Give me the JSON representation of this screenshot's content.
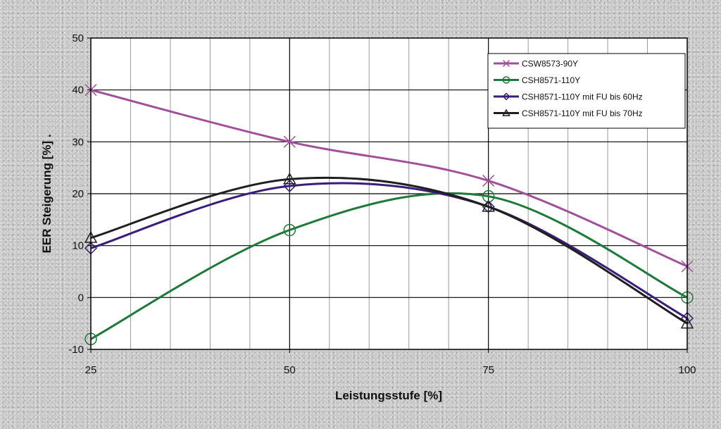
{
  "chart_data": {
    "type": "line",
    "xlabel": "Leistungsstufe [%]",
    "ylabel": "EER Steigerung [%] .",
    "x": [
      25,
      50,
      75,
      100
    ],
    "xlim": [
      25,
      100
    ],
    "ylim": [
      -10,
      50
    ],
    "x_ticks": [
      25,
      50,
      75,
      100
    ],
    "y_ticks": [
      -10,
      0,
      10,
      20,
      30,
      40,
      50
    ],
    "grid": true,
    "legend_position": "top-right",
    "series": [
      {
        "name": "CSW8573-90Y",
        "values": [
          40,
          30,
          22.5,
          6
        ],
        "color": "#a0509a",
        "marker": "x"
      },
      {
        "name": "CSH8571-110Y",
        "values": [
          -8,
          13,
          19.5,
          0
        ],
        "color": "#1e7a3a",
        "marker": "circle"
      },
      {
        "name": "CSH8571-110Y mit FU bis 60Hz",
        "values": [
          9.5,
          21.5,
          17.5,
          -4
        ],
        "color": "#3a1c7a",
        "marker": "diamond"
      },
      {
        "name": "CSH8571-110Y mit FU bis 70Hz",
        "values": [
          11.5,
          22.8,
          17.5,
          -5
        ],
        "color": "#1f1f1f",
        "marker": "triangle"
      }
    ]
  }
}
